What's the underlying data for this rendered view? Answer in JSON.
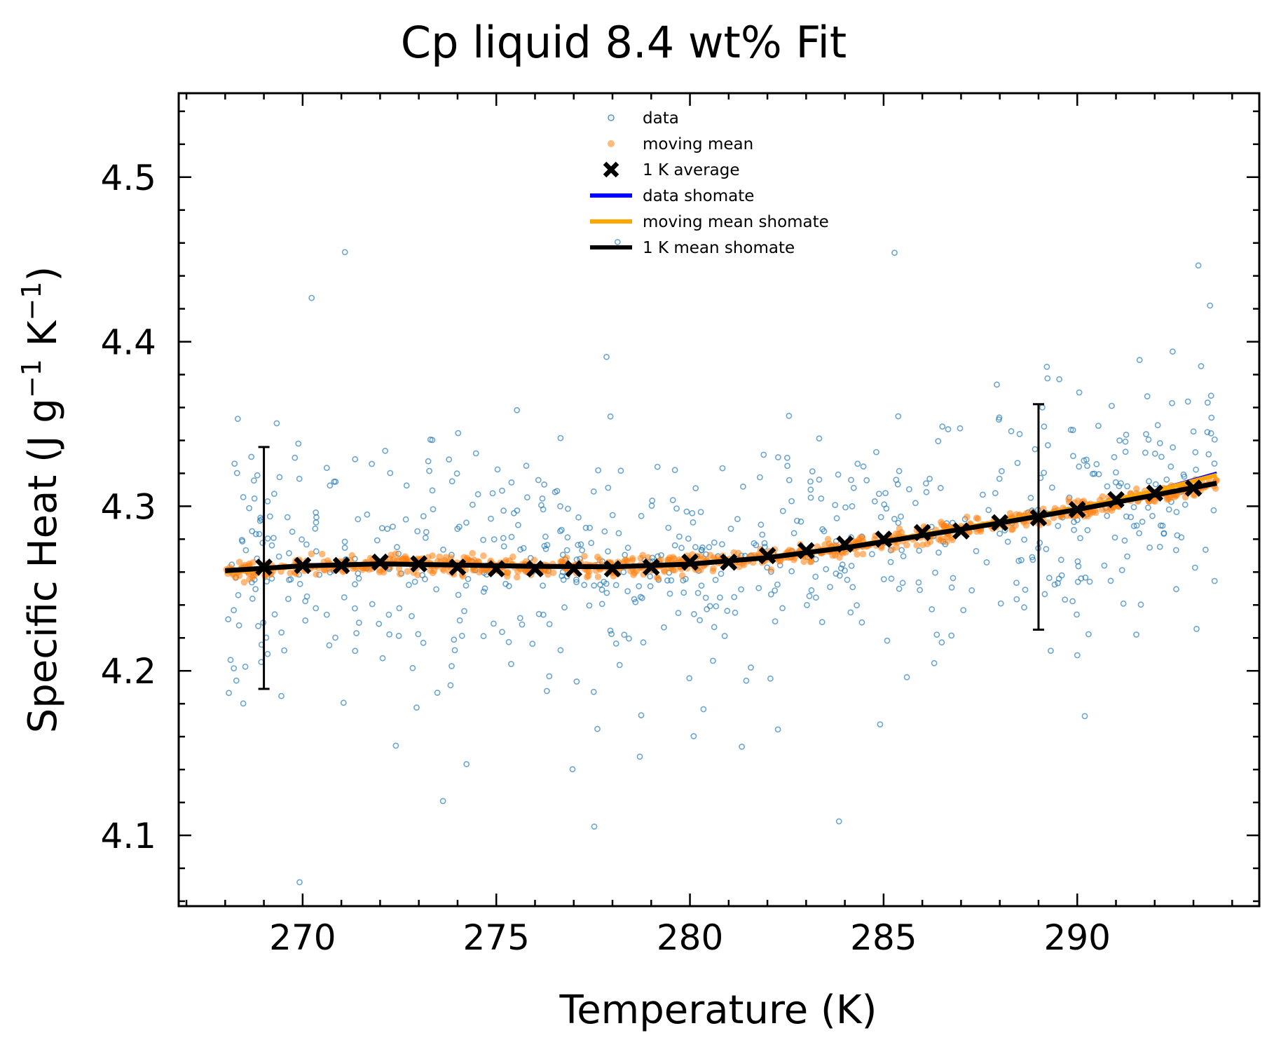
{
  "chart_data": {
    "type": "scatter",
    "title": "Cp liquid 8.4 wt% Fit",
    "xlabel": "Temperature (K)",
    "ylabel_parts": [
      "Specific Heat (J g",
      "−1",
      " K",
      "−1",
      ")"
    ],
    "xlim": [
      266.8,
      294.7
    ],
    "ylim": [
      4.057,
      4.551
    ],
    "xticks": [
      270,
      275,
      280,
      285,
      290
    ],
    "xtick_labels": [
      "270",
      "275",
      "280",
      "285",
      "290"
    ],
    "yticks": [
      4.1,
      4.2,
      4.3,
      4.4,
      4.5
    ],
    "ytick_labels": [
      "4.1",
      "4.2",
      "4.3",
      "4.4",
      "4.5"
    ],
    "grid": false,
    "legend_position": "top-center",
    "colors": {
      "data": "#1f77b4",
      "moving_mean": "#ff7f0e",
      "avg": "#000000",
      "data_shomate": "#0000ff",
      "moving_shomate": "#ffa500",
      "mean_shomate": "#000000"
    },
    "series": [
      {
        "name": "data",
        "kind": "scatter_hollow",
        "x_range": [
          268.0,
          293.6
        ],
        "count": 720,
        "spread": 0.065,
        "follows": "1 K mean shomate"
      },
      {
        "name": "moving mean",
        "kind": "scatter_filled",
        "x_range": [
          268.0,
          293.6
        ],
        "count": 900,
        "spread": 0.004,
        "follows": "1 K mean shomate"
      },
      {
        "name": "1 K average",
        "kind": "markers_x",
        "x": [
          269,
          270,
          271,
          272,
          273,
          274,
          275,
          276,
          277,
          278,
          279,
          280,
          281,
          282,
          283,
          284,
          285,
          286,
          287,
          288,
          289,
          290,
          291,
          292,
          293
        ],
        "y": [
          4.263,
          4.264,
          4.264,
          4.266,
          4.265,
          4.263,
          4.262,
          4.262,
          4.262,
          4.262,
          4.263,
          4.266,
          4.266,
          4.27,
          4.273,
          4.277,
          4.28,
          4.284,
          4.285,
          4.29,
          4.293,
          4.298,
          4.304,
          4.308,
          4.311
        ]
      },
      {
        "name": "data shomate",
        "kind": "line",
        "x": [
          268,
          270,
          272,
          274,
          276,
          278,
          280,
          282,
          284,
          286,
          288,
          290,
          292,
          293.6
        ],
        "y": [
          4.2605,
          4.2638,
          4.265,
          4.2643,
          4.2635,
          4.263,
          4.2648,
          4.2688,
          4.275,
          4.2825,
          4.2905,
          4.2985,
          4.3098,
          4.3205
        ]
      },
      {
        "name": "moving mean shomate",
        "kind": "line",
        "x": [
          268,
          270,
          272,
          274,
          276,
          278,
          280,
          282,
          284,
          286,
          288,
          290,
          292,
          293.6
        ],
        "y": [
          4.26,
          4.2635,
          4.2648,
          4.2643,
          4.2635,
          4.2632,
          4.265,
          4.269,
          4.2752,
          4.2828,
          4.2908,
          4.2988,
          4.3093,
          4.319
        ]
      },
      {
        "name": "1 K mean shomate",
        "kind": "line",
        "x": [
          268,
          270,
          272,
          274,
          276,
          278,
          280,
          282,
          284,
          286,
          288,
          290,
          292,
          293.6
        ],
        "y": [
          4.2608,
          4.2638,
          4.265,
          4.2643,
          4.2635,
          4.2632,
          4.2648,
          4.2688,
          4.2748,
          4.2822,
          4.2898,
          4.298,
          4.3068,
          4.314
        ]
      }
    ],
    "error_bars": [
      {
        "x": 269,
        "y": 4.263,
        "low": 4.189,
        "high": 4.336
      },
      {
        "x": 289,
        "y": 4.293,
        "low": 4.225,
        "high": 4.362
      }
    ],
    "legend": [
      "data",
      "moving mean",
      "1 K average",
      "data shomate",
      "moving mean shomate",
      "1 K mean shomate"
    ]
  }
}
